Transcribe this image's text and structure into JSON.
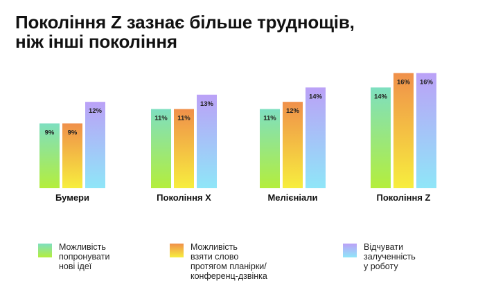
{
  "title": {
    "line1": "Покоління Z зазнає більше труднощів,",
    "line2": "ніж інші покоління"
  },
  "colors": {
    "series1_top": "#7edfc0",
    "series1_bottom": "#b4ee3c",
    "series2_top": "#f0904a",
    "series2_bottom": "#f7ee3e",
    "series3_top": "#bba1f7",
    "series3_bottom": "#8fe6f8"
  },
  "legend": [
    {
      "text": "Можливість\nпопронувати\nнові ідеї"
    },
    {
      "text": "Можливість\nвзяти слово\nпротягом планірки/\nконференц-дзвінка"
    },
    {
      "text": "Відчувати\nзалученність\nу роботу"
    }
  ],
  "chart_data": {
    "type": "bar",
    "title": "Покоління Z зазнає більше труднощів, ніж інші покоління",
    "categories": [
      "Бумери",
      "Покоління X",
      "Мелієніали",
      "Покоління Z"
    ],
    "series": [
      {
        "name": "Можливість попронувати нові ідеї",
        "values": [
          9,
          11,
          11,
          14
        ],
        "labels": [
          "9%",
          "11%",
          "11%",
          "14%"
        ]
      },
      {
        "name": "Можливість взяти слово протягом планірки/конференц-дзвінка",
        "values": [
          9,
          11,
          12,
          16
        ],
        "labels": [
          "9%",
          "11%",
          "12%",
          "16%"
        ]
      },
      {
        "name": "Відчувати залученність у роботу",
        "values": [
          12,
          13,
          14,
          16
        ],
        "labels": [
          "12%",
          "13%",
          "14%",
          "16%"
        ]
      }
    ],
    "ylim": [
      0,
      16
    ],
    "grid": false,
    "legend_position": "bottom"
  }
}
